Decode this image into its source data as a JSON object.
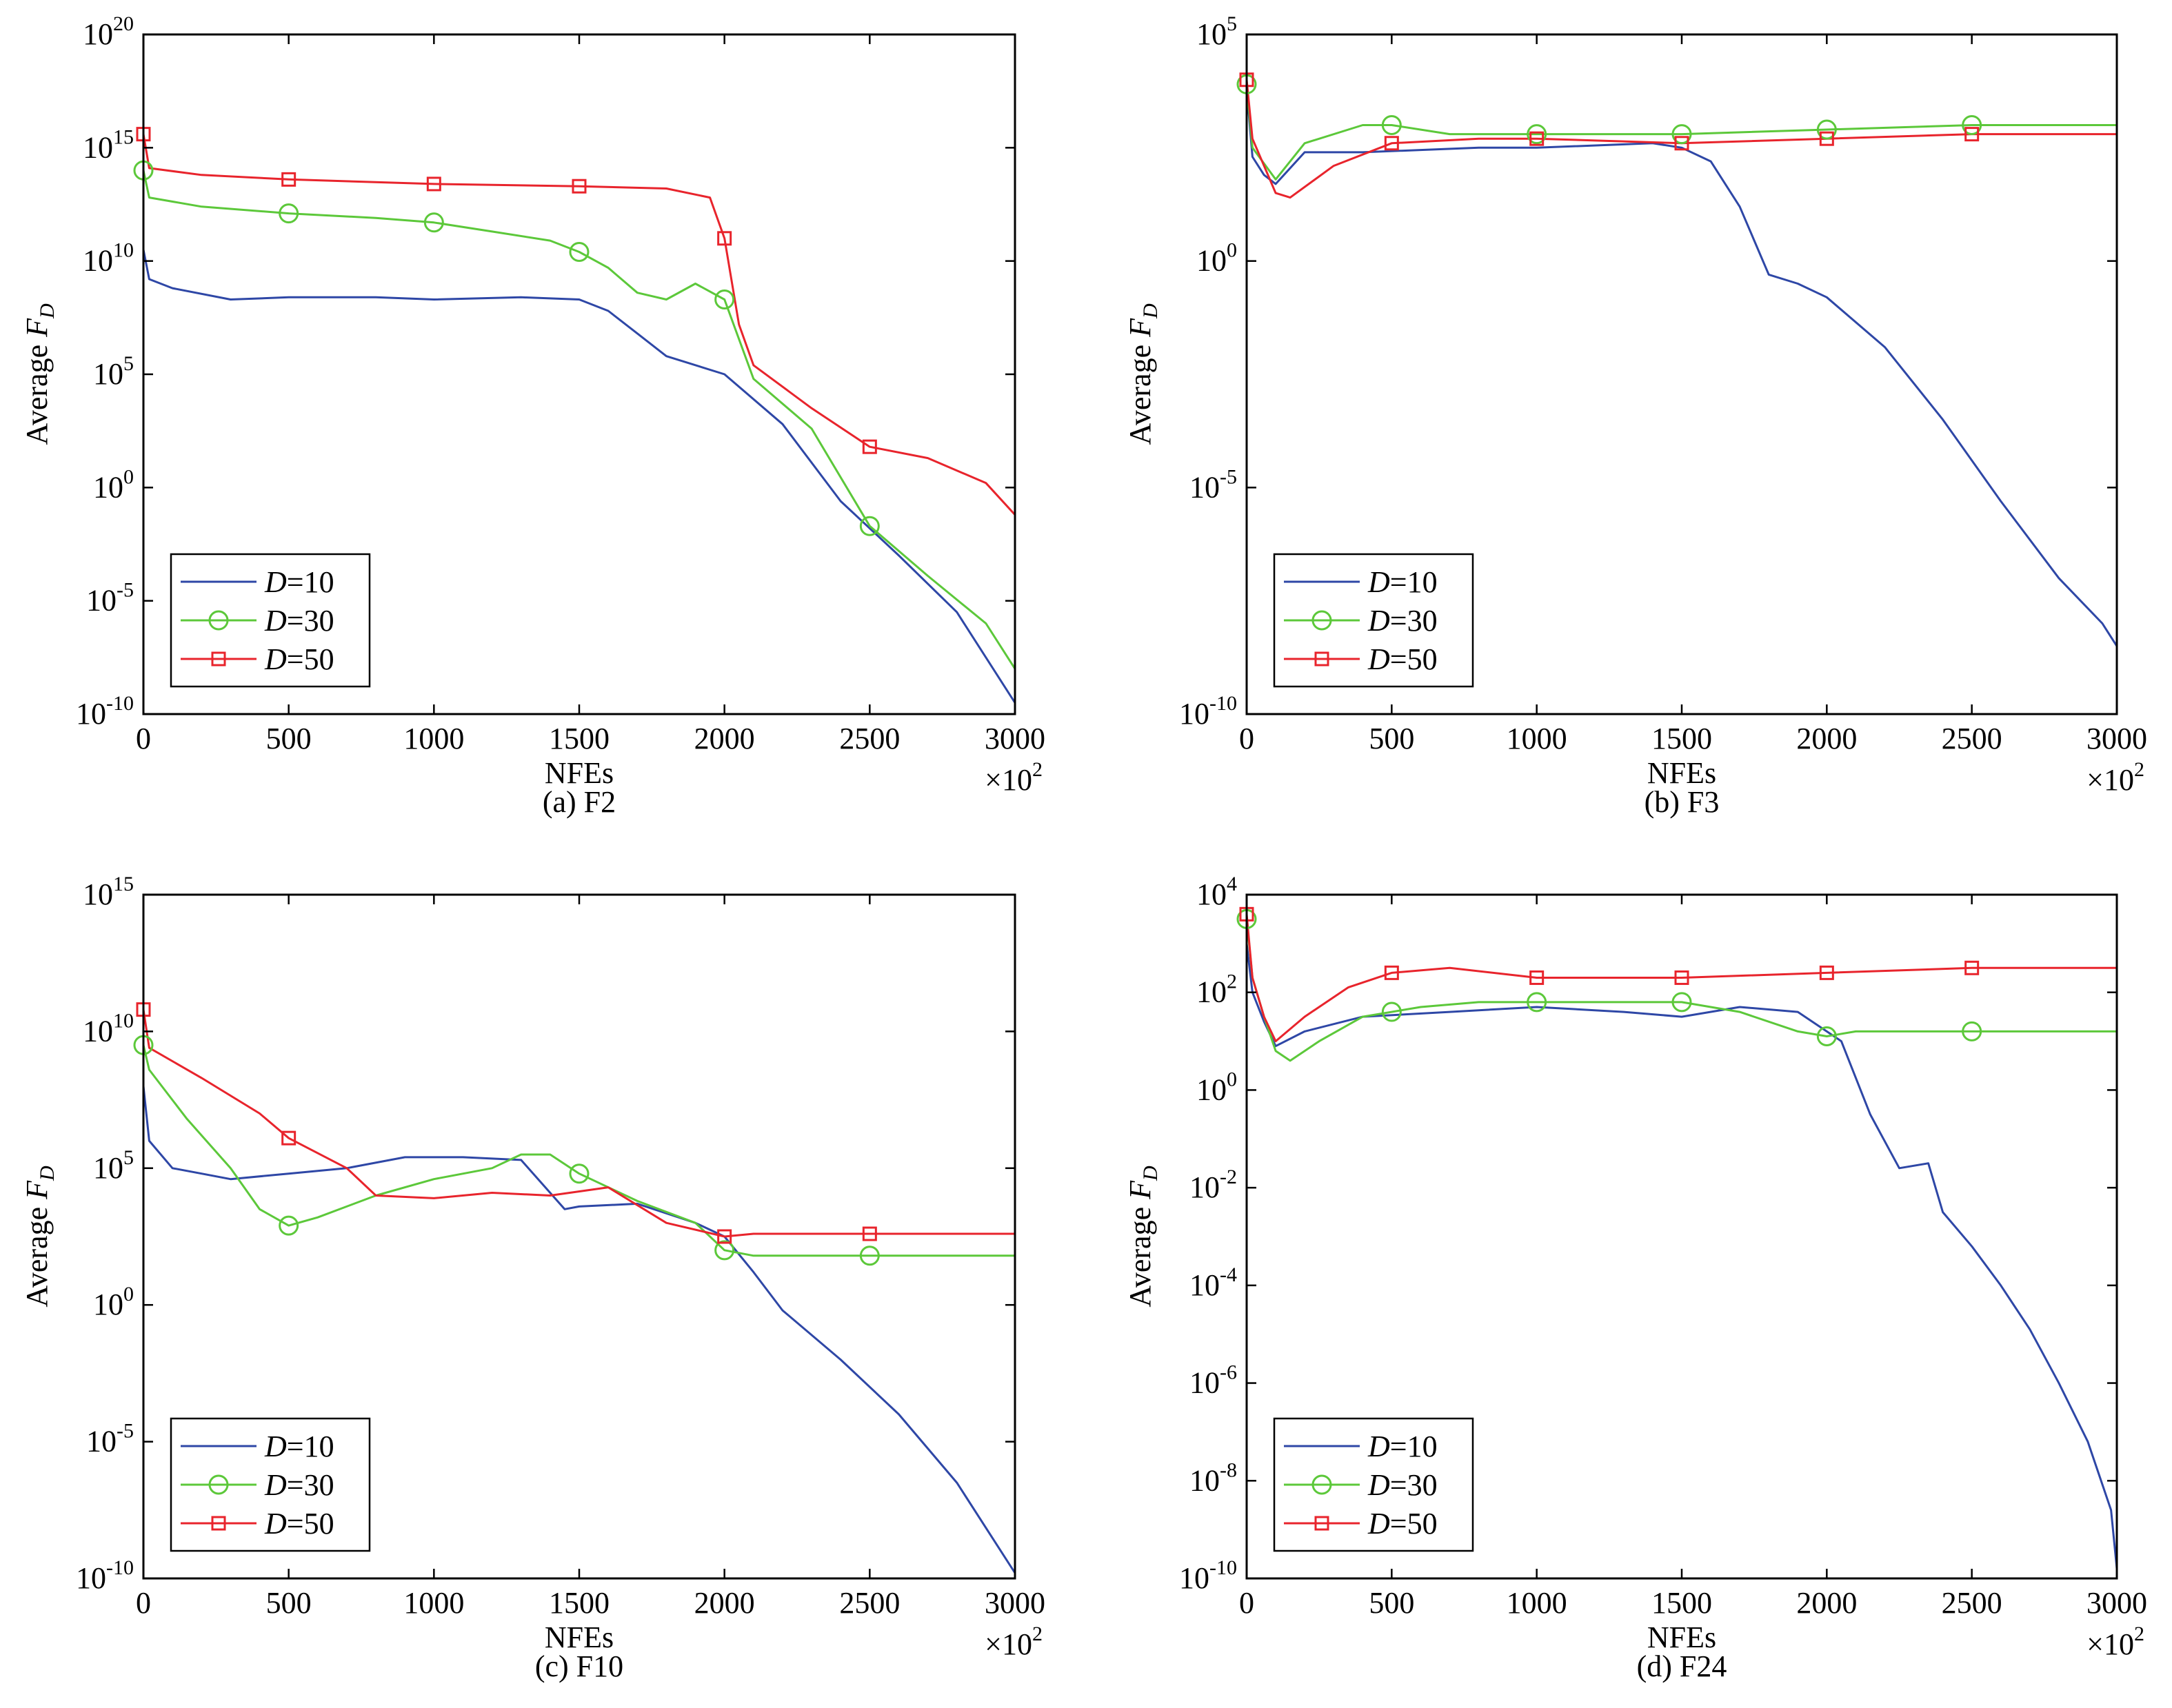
{
  "figure": {
    "colors": {
      "D10": "#2e47a6",
      "D30": "#5cc83a",
      "D50": "#e8242c"
    },
    "legend_labels": [
      {
        "var": "D",
        "text": "=10"
      },
      {
        "var": "D",
        "text": "=30"
      },
      {
        "var": "D",
        "text": "=50"
      }
    ]
  },
  "chart_data": [
    {
      "type": "line",
      "caption": "(a) F2",
      "xlabel": "NFEs",
      "ylabel": {
        "prefix": "Average ",
        "var": "F",
        "sub": "D"
      },
      "x_multiplier": {
        "base": "×10",
        "exp": "2"
      },
      "yscale": "log",
      "xlim": [
        0,
        3000
      ],
      "ylim_exp": [
        -10,
        20
      ],
      "xticks": [
        0,
        500,
        1000,
        1500,
        2000,
        2500,
        3000
      ],
      "yticks_exp": [
        -10,
        -5,
        0,
        5,
        10,
        15,
        20
      ],
      "legend_position": "bottom-left",
      "series": [
        {
          "name": "D=10",
          "color_key": "D10",
          "marker": "none",
          "x": [
            0,
            20,
            100,
            300,
            500,
            800,
            1000,
            1300,
            1500,
            1600,
            1700,
            1800,
            2000,
            2200,
            2400,
            2600,
            2800,
            3000
          ],
          "log10_y": [
            10.5,
            9.2,
            8.8,
            8.3,
            8.4,
            8.4,
            8.3,
            8.4,
            8.3,
            7.8,
            6.8,
            5.8,
            5.0,
            2.8,
            -0.6,
            -3.0,
            -5.5,
            -9.5
          ]
        },
        {
          "name": "D=30",
          "color_key": "D30",
          "marker": "circle",
          "x": [
            0,
            20,
            200,
            500,
            800,
            1000,
            1200,
            1400,
            1500,
            1600,
            1700,
            1800,
            1900,
            2000,
            2100,
            2300,
            2500,
            2700,
            2900,
            3000
          ],
          "log10_y": [
            14.0,
            12.8,
            12.4,
            12.1,
            11.9,
            11.7,
            11.3,
            10.9,
            10.4,
            9.7,
            8.6,
            8.3,
            9.0,
            8.3,
            4.8,
            2.6,
            -1.7,
            -3.9,
            -6.0,
            -8.0
          ]
        },
        {
          "name": "D=50",
          "color_key": "D50",
          "marker": "square",
          "x": [
            0,
            20,
            200,
            500,
            1000,
            1500,
            1800,
            1950,
            2000,
            2050,
            2100,
            2300,
            2500,
            2700,
            2900,
            3000
          ],
          "log10_y": [
            15.6,
            14.1,
            13.8,
            13.6,
            13.4,
            13.3,
            13.2,
            12.8,
            11.0,
            7.2,
            5.4,
            3.5,
            1.8,
            1.3,
            0.2,
            -1.2
          ]
        }
      ],
      "markers": [
        {
          "series": "D=30",
          "x": [
            0,
            500,
            1000,
            1500,
            2000,
            2500
          ],
          "log10_y": [
            14.0,
            12.1,
            11.7,
            10.4,
            8.3,
            -1.7
          ]
        },
        {
          "series": "D=50",
          "x": [
            0,
            500,
            1000,
            1500,
            2000,
            2500
          ],
          "log10_y": [
            15.6,
            13.6,
            13.4,
            13.3,
            11.0,
            1.8
          ]
        }
      ]
    },
    {
      "type": "line",
      "caption": "(b) F3",
      "xlabel": "NFEs",
      "ylabel": {
        "prefix": "Average ",
        "var": "F",
        "sub": "D"
      },
      "x_multiplier": {
        "base": "×10",
        "exp": "2"
      },
      "yscale": "log",
      "xlim": [
        0,
        3000
      ],
      "ylim_exp": [
        -10,
        5
      ],
      "xticks": [
        0,
        500,
        1000,
        1500,
        2000,
        2500,
        3000
      ],
      "yticks_exp": [
        -10,
        -5,
        0,
        5
      ],
      "legend_position": "bottom-left",
      "series": [
        {
          "name": "D=10",
          "color_key": "D10",
          "marker": "none",
          "x": [
            0,
            20,
            60,
            100,
            200,
            400,
            800,
            1000,
            1400,
            1500,
            1600,
            1700,
            1800,
            1900,
            2000,
            2200,
            2400,
            2600,
            2800,
            2950,
            3000
          ],
          "log10_y": [
            3.8,
            2.3,
            1.9,
            1.7,
            2.4,
            2.4,
            2.5,
            2.5,
            2.6,
            2.5,
            2.2,
            1.2,
            -0.3,
            -0.5,
            -0.8,
            -1.9,
            -3.5,
            -5.3,
            -7.0,
            -8.0,
            -8.5
          ]
        },
        {
          "name": "D=30",
          "color_key": "D30",
          "marker": "circle",
          "x": [
            0,
            20,
            100,
            200,
            400,
            500,
            700,
            1000,
            1500,
            2000,
            2500,
            3000
          ],
          "log10_y": [
            3.9,
            2.5,
            1.8,
            2.6,
            3.0,
            3.0,
            2.8,
            2.8,
            2.8,
            2.9,
            3.0,
            3.0
          ]
        },
        {
          "name": "D=50",
          "color_key": "D50",
          "marker": "square",
          "x": [
            0,
            20,
            100,
            150,
            300,
            500,
            800,
            1000,
            1500,
            2000,
            2500,
            3000
          ],
          "log10_y": [
            4.0,
            2.7,
            1.5,
            1.4,
            2.1,
            2.6,
            2.7,
            2.7,
            2.6,
            2.7,
            2.8,
            2.8
          ]
        }
      ],
      "markers": [
        {
          "series": "D=30",
          "x": [
            0,
            500,
            1000,
            1500,
            2000,
            2500
          ],
          "log10_y": [
            3.9,
            3.0,
            2.8,
            2.8,
            2.9,
            3.0
          ]
        },
        {
          "series": "D=50",
          "x": [
            0,
            500,
            1000,
            1500,
            2000,
            2500
          ],
          "log10_y": [
            4.0,
            2.6,
            2.7,
            2.6,
            2.7,
            2.8
          ]
        }
      ]
    },
    {
      "type": "line",
      "caption": "(c) F10",
      "xlabel": "NFEs",
      "ylabel": {
        "prefix": "Average ",
        "var": "F",
        "sub": "D"
      },
      "x_multiplier": {
        "base": "×10",
        "exp": "2"
      },
      "yscale": "log",
      "xlim": [
        0,
        3000
      ],
      "ylim_exp": [
        -10,
        15
      ],
      "xticks": [
        0,
        500,
        1000,
        1500,
        2000,
        2500,
        3000
      ],
      "yticks_exp": [
        -10,
        -5,
        0,
        5,
        10,
        15
      ],
      "legend_position": "bottom-left",
      "series": [
        {
          "name": "D=10",
          "color_key": "D10",
          "marker": "none",
          "x": [
            0,
            20,
            100,
            200,
            300,
            500,
            700,
            900,
            1100,
            1300,
            1450,
            1500,
            1700,
            1900,
            2000,
            2100,
            2200,
            2400,
            2600,
            2800,
            3000
          ],
          "log10_y": [
            8.0,
            6.0,
            5.0,
            4.8,
            4.6,
            4.8,
            5.0,
            5.4,
            5.4,
            5.3,
            3.5,
            3.6,
            3.7,
            3.0,
            2.5,
            1.2,
            -0.2,
            -2.0,
            -4.0,
            -6.5,
            -9.8
          ]
        },
        {
          "name": "D=30",
          "color_key": "D30",
          "marker": "circle",
          "x": [
            0,
            20,
            150,
            300,
            400,
            500,
            600,
            800,
            1000,
            1200,
            1300,
            1400,
            1500,
            1700,
            1900,
            2000,
            2100,
            2500,
            3000
          ],
          "log10_y": [
            9.5,
            8.6,
            6.8,
            5.0,
            3.5,
            2.9,
            3.2,
            4.0,
            4.6,
            5.0,
            5.5,
            5.5,
            4.8,
            3.8,
            3.0,
            2.0,
            1.8,
            1.8,
            1.8
          ]
        },
        {
          "name": "D=50",
          "color_key": "D50",
          "marker": "square",
          "x": [
            0,
            20,
            200,
            400,
            500,
            700,
            800,
            1000,
            1200,
            1400,
            1600,
            1800,
            2000,
            2100,
            2500,
            3000
          ],
          "log10_y": [
            10.8,
            9.4,
            8.3,
            7.0,
            6.1,
            5.0,
            4.0,
            3.9,
            4.1,
            4.0,
            4.3,
            3.0,
            2.5,
            2.6,
            2.6,
            2.6
          ]
        }
      ],
      "markers": [
        {
          "series": "D=30",
          "x": [
            0,
            500,
            1500,
            2000,
            2500
          ],
          "log10_y": [
            9.5,
            2.9,
            4.8,
            2.0,
            1.8
          ]
        },
        {
          "series": "D=50",
          "x": [
            0,
            500,
            2000,
            2500
          ],
          "log10_y": [
            10.8,
            6.1,
            2.5,
            2.6
          ]
        }
      ]
    },
    {
      "type": "line",
      "caption": "(d) F24",
      "xlabel": "NFEs",
      "ylabel": {
        "prefix": "Average ",
        "var": "F",
        "sub": "D"
      },
      "x_multiplier": {
        "base": "×10",
        "exp": "2"
      },
      "yscale": "log",
      "xlim": [
        0,
        3000
      ],
      "ylim_exp": [
        -10,
        4
      ],
      "xticks": [
        0,
        500,
        1000,
        1500,
        2000,
        2500,
        3000
      ],
      "yticks_exp": [
        -10,
        -8,
        -6,
        -4,
        -2,
        0,
        2,
        4
      ],
      "legend_position": "bottom-left",
      "series": [
        {
          "name": "D=10",
          "color_key": "D10",
          "marker": "none",
          "x": [
            0,
            20,
            60,
            100,
            200,
            400,
            700,
            1000,
            1300,
            1500,
            1700,
            1900,
            2050,
            2150,
            2250,
            2350,
            2400,
            2500,
            2600,
            2700,
            2800,
            2900,
            2980,
            3000
          ],
          "log10_y": [
            3.0,
            2.0,
            1.4,
            0.9,
            1.2,
            1.5,
            1.6,
            1.7,
            1.6,
            1.5,
            1.7,
            1.6,
            1.0,
            -0.5,
            -1.6,
            -1.5,
            -2.5,
            -3.2,
            -4.0,
            -4.9,
            -6.0,
            -7.2,
            -8.6,
            -9.8
          ]
        },
        {
          "name": "D=30",
          "color_key": "D30",
          "marker": "circle",
          "x": [
            0,
            20,
            60,
            100,
            150,
            250,
            400,
            600,
            800,
            1000,
            1300,
            1500,
            1700,
            1900,
            2000,
            2100,
            2500,
            3000
          ],
          "log10_y": [
            3.5,
            2.3,
            1.5,
            0.8,
            0.6,
            1.0,
            1.5,
            1.7,
            1.8,
            1.8,
            1.8,
            1.8,
            1.6,
            1.2,
            1.1,
            1.2,
            1.2,
            1.2
          ]
        },
        {
          "name": "D=50",
          "color_key": "D50",
          "marker": "square",
          "x": [
            0,
            20,
            60,
            100,
            200,
            350,
            500,
            700,
            1000,
            1200,
            1500,
            2000,
            2500,
            3000
          ],
          "log10_y": [
            3.6,
            2.3,
            1.5,
            1.0,
            1.5,
            2.1,
            2.4,
            2.5,
            2.3,
            2.3,
            2.3,
            2.4,
            2.5,
            2.5
          ]
        }
      ],
      "markers": [
        {
          "series": "D=30",
          "x": [
            0,
            500,
            1000,
            1500,
            2000,
            2500
          ],
          "log10_y": [
            3.5,
            1.6,
            1.8,
            1.8,
            1.1,
            1.2
          ]
        },
        {
          "series": "D=50",
          "x": [
            0,
            500,
            1000,
            1500,
            2000,
            2500
          ],
          "log10_y": [
            3.6,
            2.4,
            2.3,
            2.3,
            2.4,
            2.5
          ]
        }
      ]
    }
  ]
}
